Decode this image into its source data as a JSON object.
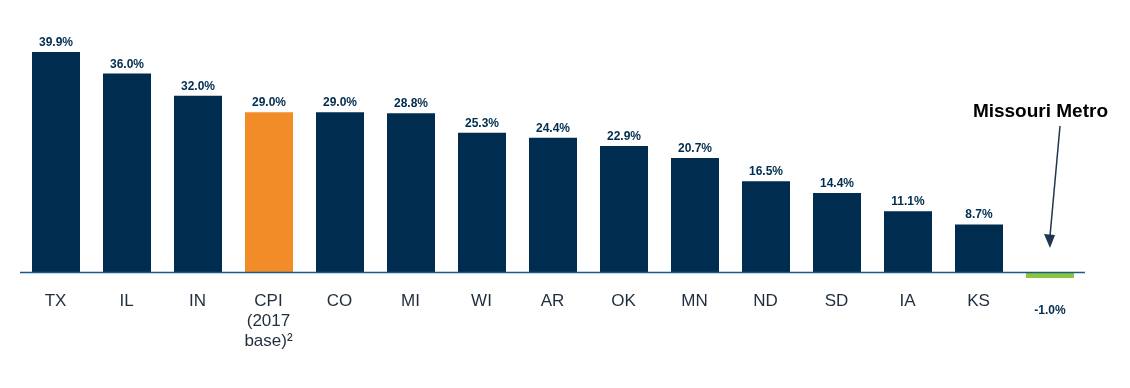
{
  "chart_data": {
    "type": "bar",
    "categories": [
      "TX",
      "IL",
      "IN",
      "CPI (2017 base)²",
      "CO",
      "MI",
      "WI",
      "AR",
      "OK",
      "MN",
      "ND",
      "SD",
      "IA",
      "KS",
      null
    ],
    "values": [
      39.9,
      36.0,
      32.0,
      29.0,
      29.0,
      28.8,
      25.3,
      24.4,
      22.9,
      20.7,
      16.5,
      14.4,
      11.1,
      8.7,
      -1.0
    ],
    "colors": [
      "#002d4f",
      "#002d4f",
      "#002d4f",
      "#f28c28",
      "#002d4f",
      "#002d4f",
      "#002d4f",
      "#002d4f",
      "#002d4f",
      "#002d4f",
      "#002d4f",
      "#002d4f",
      "#002d4f",
      "#002d4f",
      "#8cc63f"
    ],
    "value_labels": [
      "39.9%",
      "36.0%",
      "32.0%",
      "29.0%",
      "29.0%",
      "28.8%",
      "25.3%",
      "24.4%",
      "22.9%",
      "20.7%",
      "16.5%",
      "14.4%",
      "11.1%",
      "8.7%",
      "-1.0%"
    ],
    "annotations": [
      "Missouri Metro"
    ],
    "grid": false,
    "legend": false
  }
}
